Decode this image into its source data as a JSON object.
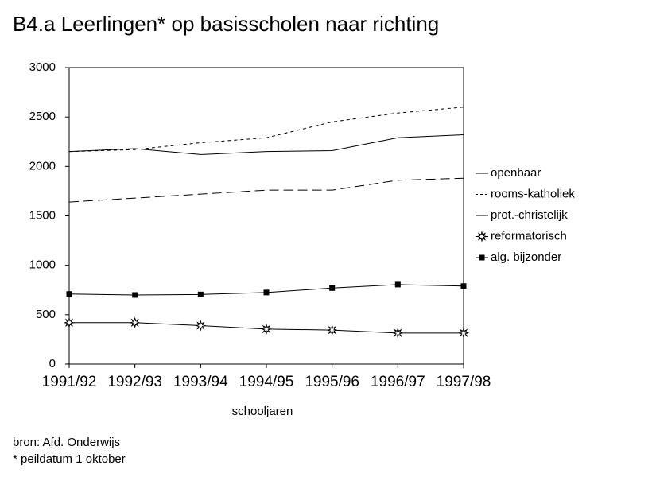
{
  "chart_data": {
    "type": "line",
    "title": "B4.a   Leerlingen* op basisscholen naar richting",
    "x_label": "schooljaren",
    "source": "bron: Afd. Onderwijs",
    "footnote": "* peildatum 1 oktober",
    "categories": [
      "1991/92",
      "1992/93",
      "1993/94",
      "1994/95",
      "1995/96",
      "1996/97",
      "1997/98"
    ],
    "ylim": [
      0,
      3000
    ],
    "yticks": [
      0,
      500,
      1000,
      1500,
      2000,
      2500,
      3000
    ],
    "series": [
      {
        "name": "openbaar",
        "color": "#000000",
        "dash": "12,6",
        "marker": "none",
        "values": [
          1640,
          1680,
          1720,
          1760,
          1760,
          1860,
          1880
        ]
      },
      {
        "name": "rooms-katholiek",
        "color": "#000000",
        "dash": "4,4",
        "marker": "none",
        "values": [
          2150,
          2170,
          2240,
          2290,
          2450,
          2540,
          2600
        ]
      },
      {
        "name": "prot.-christelijk",
        "color": "#000000",
        "dash": "none",
        "marker": "none",
        "values": [
          2150,
          2180,
          2120,
          2150,
          2160,
          2290,
          2320
        ]
      },
      {
        "name": "reformatorisch",
        "color": "#000000",
        "dash": "none",
        "marker": "star",
        "values": [
          420,
          420,
          390,
          355,
          345,
          315,
          315
        ]
      },
      {
        "name": "alg. bijzonder",
        "color": "#000000",
        "dash": "none",
        "marker": "square",
        "values": [
          710,
          700,
          705,
          725,
          770,
          805,
          790
        ]
      }
    ]
  }
}
